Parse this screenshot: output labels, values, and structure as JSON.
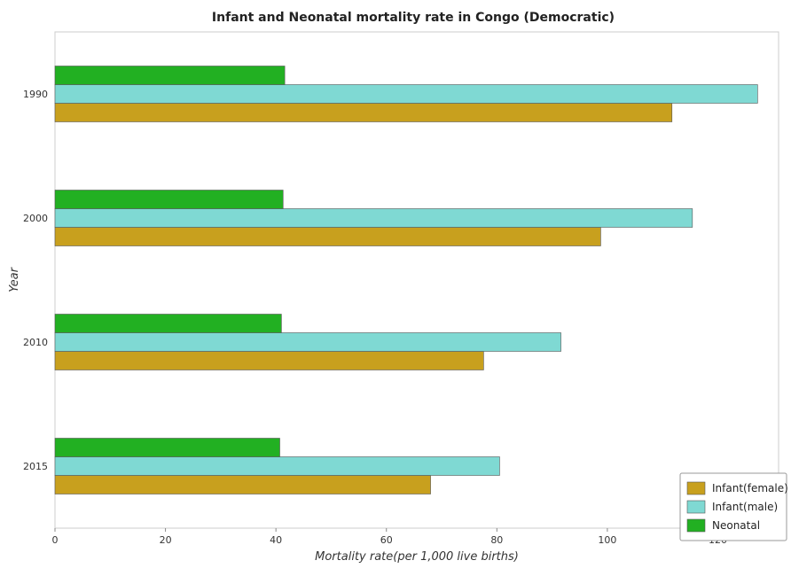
{
  "chart_data": {
    "type": "bar",
    "orientation": "horizontal",
    "title": "Infant and Neonatal mortality rate in Congo (Democratic)",
    "xlabel": "Mortality rate(per 1,000 live births)",
    "ylabel": "Year",
    "categories": [
      "1990",
      "2000",
      "2010",
      "2015"
    ],
    "xlim": [
      0,
      131
    ],
    "xticks": [
      0,
      20,
      40,
      60,
      80,
      100,
      120
    ],
    "grid": false,
    "legend_position": "bottom-right",
    "series": [
      {
        "name": "Infant(female)",
        "color": "#c8a01e",
        "values": [
          111.7,
          98.8,
          77.6,
          68.0
        ]
      },
      {
        "name": "Infant(male)",
        "color": "#7fd9d3",
        "values": [
          127.2,
          115.4,
          91.6,
          80.5
        ]
      },
      {
        "name": "Neonatal",
        "color": "#22b022",
        "values": [
          41.6,
          41.3,
          41.0,
          40.7
        ]
      }
    ]
  }
}
